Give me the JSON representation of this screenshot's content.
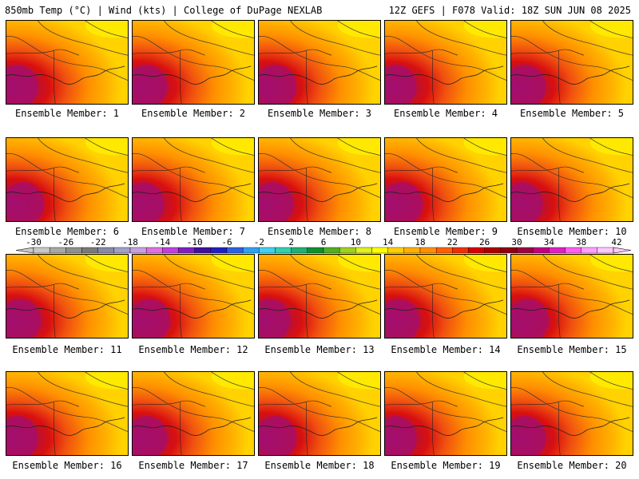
{
  "header": {
    "left": "850mb Temp (°C) | Wind (kts) | College of DuPage NEXLAB",
    "right": "12Z GEFS | F078 Valid: 18Z SUN JUN 08 2025"
  },
  "members": [
    "Ensemble Member: 1",
    "Ensemble Member: 2",
    "Ensemble Member: 3",
    "Ensemble Member: 4",
    "Ensemble Member: 5",
    "Ensemble Member: 6",
    "Ensemble Member: 7",
    "Ensemble Member: 8",
    "Ensemble Member: 9",
    "Ensemble Member: 10",
    "Ensemble Member: 11",
    "Ensemble Member: 12",
    "Ensemble Member: 13",
    "Ensemble Member: 14",
    "Ensemble Member: 15",
    "Ensemble Member: 16",
    "Ensemble Member: 17",
    "Ensemble Member: 18",
    "Ensemble Member: 19",
    "Ensemble Member: 20"
  ],
  "colorbar": {
    "labels": [
      "-30",
      "-26",
      "-22",
      "-18",
      "-14",
      "-10",
      "-6",
      "-2",
      "2",
      "6",
      "10",
      "14",
      "18",
      "22",
      "26",
      "30",
      "34",
      "38",
      "42"
    ],
    "colors": [
      "#c8c8c8",
      "#a8a8a8",
      "#909090",
      "#7a7a7a",
      "#8a8aa8",
      "#a0a0c8",
      "#c8a0e0",
      "#e070e0",
      "#c040e0",
      "#8020c0",
      "#4010a0",
      "#2020c0",
      "#3060e0",
      "#30a0f0",
      "#40d0f0",
      "#30d0b0",
      "#20b070",
      "#109030",
      "#50b020",
      "#a0d020",
      "#e0f020",
      "#ffff00",
      "#ffd000",
      "#ffb000",
      "#ff9000",
      "#ff6000",
      "#f03000",
      "#d80000",
      "#b00000",
      "#900010",
      "#a00040",
      "#c00080",
      "#e020c0",
      "#ff60f0",
      "#ffa0ff",
      "#ffc8ff"
    ]
  }
}
